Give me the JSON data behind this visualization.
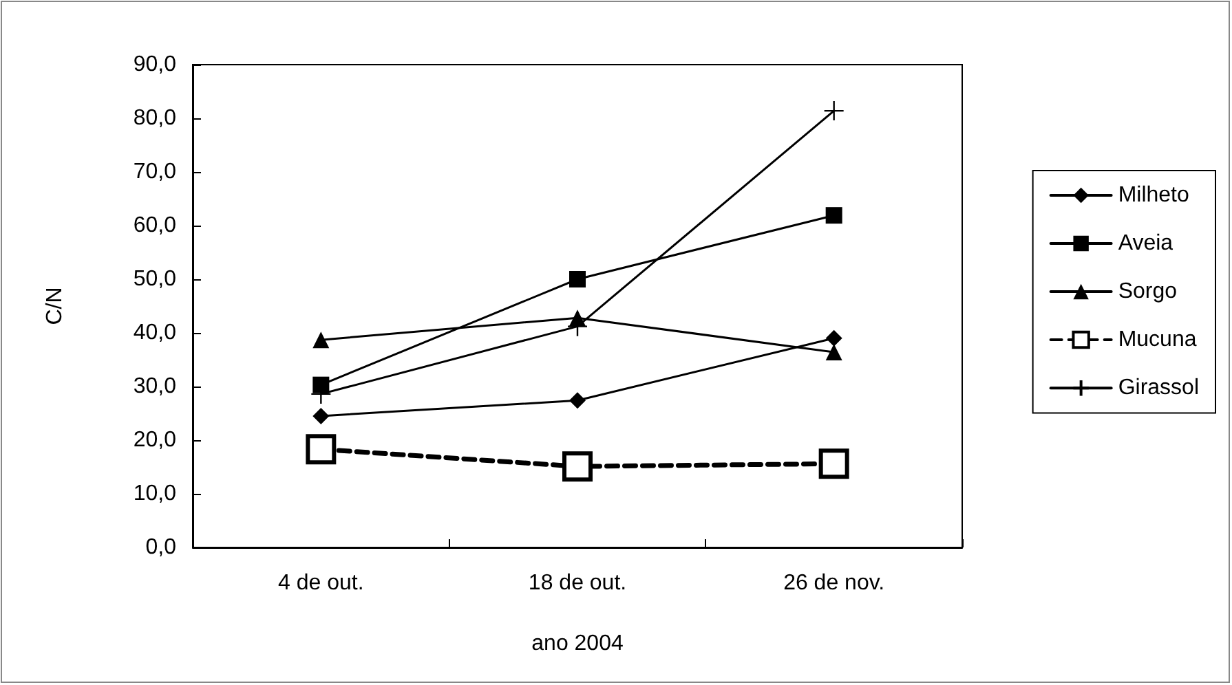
{
  "chart_data": {
    "type": "line",
    "xlabel": "ano 2004",
    "ylabel": "C/N",
    "categories": [
      "4 de out.",
      "18 de out.",
      "26 de nov."
    ],
    "series": [
      {
        "name": "Milheto",
        "color": "#000000",
        "marker": "diamond",
        "line_style": "solid",
        "values": [
          24.5,
          27.4,
          39.0
        ]
      },
      {
        "name": "Aveia",
        "color": "#000000",
        "marker": "square",
        "line_style": "solid",
        "values": [
          30.3,
          50.0,
          61.9
        ]
      },
      {
        "name": "Sorgo",
        "color": "#000000",
        "marker": "triangle",
        "line_style": "solid",
        "values": [
          38.7,
          42.8,
          36.4
        ]
      },
      {
        "name": "Mucuna",
        "color": "#000000",
        "marker": "square",
        "line_style": "dashed",
        "values": [
          18.3,
          15.1,
          15.6
        ]
      },
      {
        "name": "Girassol",
        "color": "#000000",
        "marker": "cross",
        "line_style": "solid",
        "values": [
          28.6,
          41.2,
          81.4
        ]
      }
    ],
    "ylim": [
      0,
      90
    ],
    "yticks": [
      {
        "value": 0,
        "label": "0,0"
      },
      {
        "value": 10,
        "label": "10,0"
      },
      {
        "value": 20,
        "label": "20,0"
      },
      {
        "value": 30,
        "label": "30,0"
      },
      {
        "value": 40,
        "label": "40,0"
      },
      {
        "value": 50,
        "label": "50,0"
      },
      {
        "value": 60,
        "label": "60,0"
      },
      {
        "value": 70,
        "label": "70,0"
      },
      {
        "value": 80,
        "label": "80,0"
      },
      {
        "value": 90,
        "label": "90,0"
      }
    ],
    "grid": false,
    "legend": "right"
  }
}
